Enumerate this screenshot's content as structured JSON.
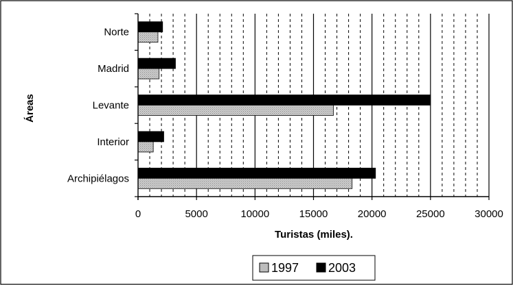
{
  "chart_data": {
    "type": "bar",
    "orientation": "horizontal",
    "categories": [
      "Norte",
      "Madrid",
      "Levante",
      "Interior",
      "Archipiélagos"
    ],
    "series": [
      {
        "name": "1997",
        "values": [
          1700,
          1800,
          16700,
          1300,
          18300
        ],
        "color": "#bdbdbd"
      },
      {
        "name": "2003",
        "values": [
          2100,
          3200,
          25000,
          2200,
          20300
        ],
        "color": "#000000"
      }
    ],
    "xlabel": "Turistas (miles).",
    "ylabel": "Áreas",
    "xlim": [
      0,
      30000
    ],
    "xticks": [
      "0",
      "5000",
      "10000",
      "15000",
      "20000",
      "25000",
      "30000"
    ],
    "grid": {
      "major": "solid",
      "minor": "dashed",
      "minor_step": 1000
    },
    "legend_position": "bottom"
  }
}
